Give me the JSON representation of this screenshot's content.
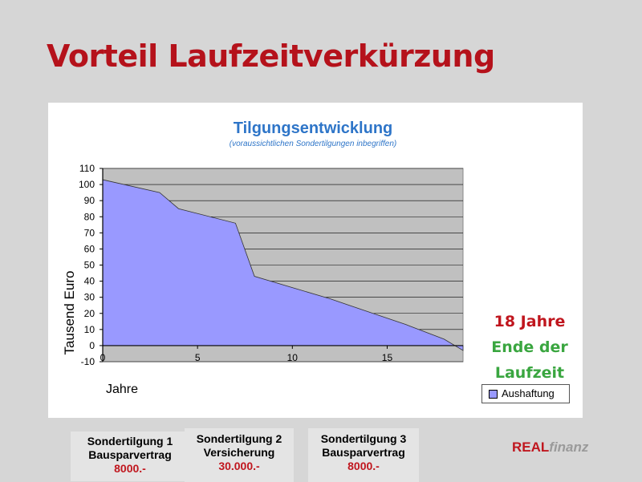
{
  "slide": {
    "title": "Vorteil Laufzeitverkürzung",
    "note_lines": [
      "18 Jahre",
      "Ende der",
      "Laufzeit"
    ],
    "boxes": [
      {
        "title": "Sondertilgung 1",
        "subtitle": "Bausparvertrag",
        "amount": "8000.-"
      },
      {
        "title": "Sondertilgung 2",
        "subtitle": "Versicherung",
        "amount": "30.000.-"
      },
      {
        "title": "Sondertilgung 3",
        "subtitle": "Bausparvertrag",
        "amount": "8000.-"
      }
    ],
    "brand": {
      "part1": "REAL",
      "part2": "finanz"
    }
  },
  "chart_data": {
    "type": "area",
    "title": "Tilgungsentwicklung",
    "subtitle": "(voraussichtlichen Sondertilgungen inbegriffen)",
    "xlabel": "Jahre",
    "ylabel": "Tausend Euro",
    "xlim": [
      0,
      19
    ],
    "ylim": [
      -10,
      110
    ],
    "xticks": [
      0,
      5,
      10,
      15
    ],
    "yticks": [
      -10,
      0,
      10,
      20,
      30,
      40,
      50,
      60,
      70,
      80,
      90,
      100,
      110
    ],
    "grid": true,
    "legend_position": "bottom-right",
    "colors": {
      "area": "#9999ff",
      "plot_bg": "#c0c0c0",
      "title": "#2e75c8"
    },
    "series": [
      {
        "name": "Aushaftung",
        "x": [
          0,
          3,
          4,
          7,
          8,
          10,
          12,
          14,
          16,
          18,
          19
        ],
        "y": [
          103,
          95,
          85,
          76,
          43,
          36,
          29,
          21,
          13,
          4,
          -3
        ]
      }
    ]
  }
}
